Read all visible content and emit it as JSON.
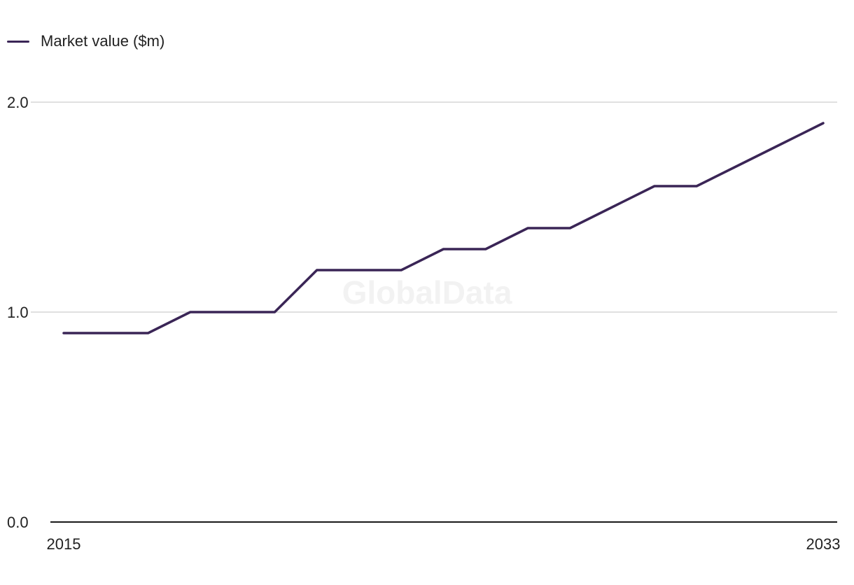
{
  "chart_data": {
    "type": "line",
    "x": [
      2015,
      2016,
      2017,
      2018,
      2019,
      2020,
      2021,
      2022,
      2023,
      2024,
      2025,
      2026,
      2027,
      2028,
      2029,
      2030,
      2031,
      2032,
      2033
    ],
    "series": [
      {
        "name": "Market value ($m)",
        "values": [
          0.9,
          0.9,
          0.9,
          1.0,
          1.0,
          1.0,
          1.2,
          1.2,
          1.2,
          1.3,
          1.3,
          1.4,
          1.4,
          1.5,
          1.6,
          1.6,
          1.7,
          1.8,
          1.9
        ],
        "color": "#3a2556"
      }
    ],
    "xticks": [
      "2015",
      "2033"
    ],
    "yticks": [
      "0.0",
      "1.0",
      "2.0"
    ],
    "ylim": [
      0,
      2
    ],
    "grid": true,
    "legend_position": "top-left",
    "watermark": "GlobalData"
  }
}
